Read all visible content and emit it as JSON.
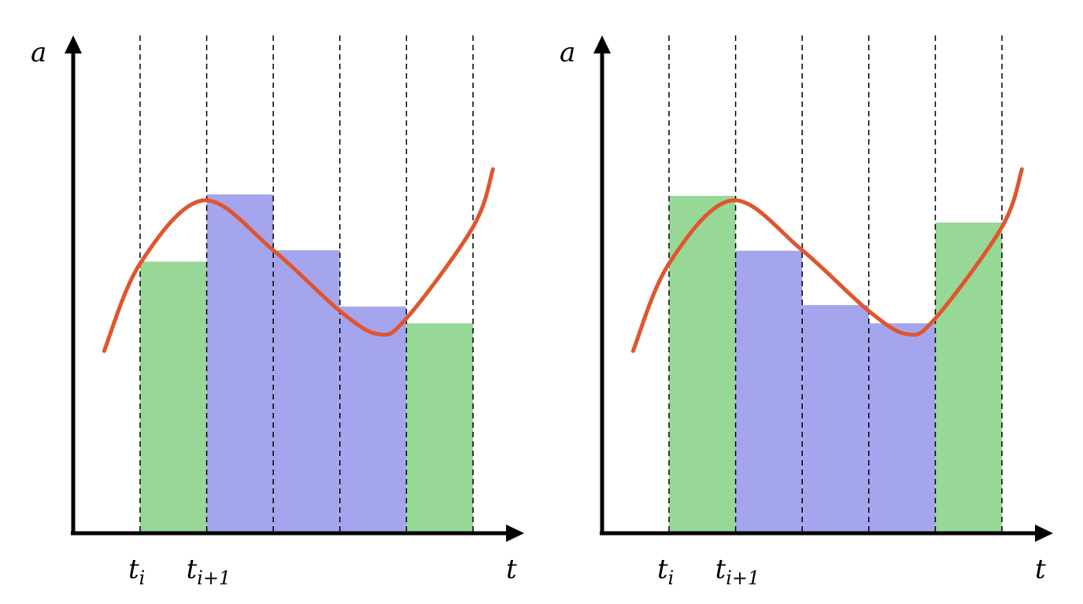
{
  "chart_data": [
    {
      "type": "bar",
      "title": "",
      "xlabel": "t",
      "ylabel": "a",
      "tick_labels": {
        "ti": "t",
        "ti_sub": "i",
        "ti1": "t",
        "ti1_sub": "i+1"
      },
      "intervals": 5,
      "bars": [
        {
          "value": 5.5,
          "color": "green"
        },
        {
          "value": 6.86,
          "color": "blue"
        },
        {
          "value": 5.73,
          "color": "blue"
        },
        {
          "value": 4.59,
          "color": "blue"
        },
        {
          "value": 4.25,
          "color": "green"
        }
      ],
      "curve": [
        [
          -0.54,
          3.69
        ],
        [
          0,
          5.46
        ],
        [
          0.95,
          6.74
        ],
        [
          2,
          5.73
        ],
        [
          3,
          4.5
        ],
        [
          3.58,
          4.03
        ],
        [
          4,
          4.35
        ],
        [
          5,
          6.2
        ],
        [
          5.3,
          7.37
        ]
      ],
      "ylim": [
        0,
        10
      ]
    },
    {
      "type": "bar",
      "title": "",
      "xlabel": "t",
      "ylabel": "a",
      "tick_labels": {
        "ti": "t",
        "ti_sub": "i",
        "ti1": "t",
        "ti1_sub": "i+1"
      },
      "intervals": 5,
      "bars": [
        {
          "value": 6.83,
          "color": "green"
        },
        {
          "value": 5.72,
          "color": "blue"
        },
        {
          "value": 4.62,
          "color": "blue"
        },
        {
          "value": 4.25,
          "color": "blue"
        },
        {
          "value": 6.29,
          "color": "green"
        }
      ],
      "curve": [
        [
          -0.54,
          3.69
        ],
        [
          0,
          5.46
        ],
        [
          0.95,
          6.74
        ],
        [
          2,
          5.73
        ],
        [
          3,
          4.5
        ],
        [
          3.58,
          4.03
        ],
        [
          4,
          4.35
        ],
        [
          5,
          6.2
        ],
        [
          5.3,
          7.37
        ]
      ],
      "ylim": [
        0,
        10
      ]
    }
  ],
  "colors": {
    "green": "#97d897",
    "blue": "#a5a5ee",
    "curve": "#e0552e",
    "axis": "#000000"
  }
}
